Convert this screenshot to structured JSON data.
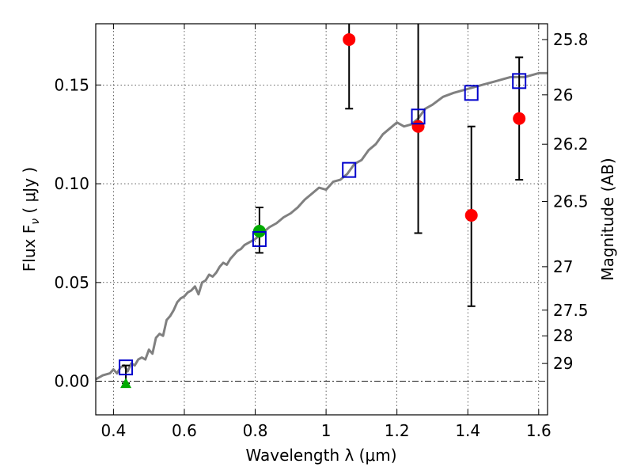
{
  "chart_data": {
    "type": "scatter",
    "xlabel": "Wavelength  λ (μm)",
    "ylabel": "Flux  F",
    "ylabel_sub": "ν",
    "ylabel_unit": "  (  μJy  )",
    "ylabel_right": "Magnitude (AB)",
    "xlim": [
      0.35,
      1.625
    ],
    "ylim": [
      -0.017,
      0.181
    ],
    "x_ticks": [
      0.4,
      0.6,
      0.8,
      1.0,
      1.2,
      1.4,
      1.6
    ],
    "x_tick_labels": [
      "0.4",
      "0.6",
      "0.8",
      "1",
      "1.2",
      "1.4",
      "1.6"
    ],
    "y_ticks": [
      0.0,
      0.05,
      0.1,
      0.15
    ],
    "y_tick_labels": [
      "0.00",
      "0.05",
      "0.10",
      "0.15"
    ],
    "right_ticks": [
      {
        "label": "25.8",
        "flux": 0.173
      },
      {
        "label": "26",
        "flux": 0.145
      },
      {
        "label": "26.2",
        "flux": 0.12
      },
      {
        "label": "26.5",
        "flux": 0.091
      },
      {
        "label": "27",
        "flux": 0.058
      },
      {
        "label": "27.5",
        "flux": 0.036
      },
      {
        "label": "28",
        "flux": 0.023
      },
      {
        "label": "29",
        "flux": 0.009
      }
    ],
    "grid": true,
    "model_spectrum": {
      "color": "#808080",
      "x": [
        0.35,
        0.37,
        0.39,
        0.4,
        0.41,
        0.42,
        0.43,
        0.44,
        0.45,
        0.46,
        0.47,
        0.48,
        0.49,
        0.5,
        0.51,
        0.52,
        0.53,
        0.54,
        0.55,
        0.56,
        0.57,
        0.58,
        0.59,
        0.6,
        0.61,
        0.62,
        0.63,
        0.64,
        0.65,
        0.66,
        0.67,
        0.68,
        0.69,
        0.7,
        0.71,
        0.72,
        0.73,
        0.74,
        0.75,
        0.76,
        0.77,
        0.78,
        0.79,
        0.8,
        0.82,
        0.84,
        0.86,
        0.88,
        0.9,
        0.92,
        0.94,
        0.96,
        0.98,
        1.0,
        1.02,
        1.04,
        1.06,
        1.08,
        1.1,
        1.12,
        1.14,
        1.16,
        1.18,
        1.2,
        1.22,
        1.24,
        1.26,
        1.28,
        1.3,
        1.33,
        1.36,
        1.4,
        1.44,
        1.48,
        1.52,
        1.56,
        1.6,
        1.625
      ],
      "y": [
        0.001,
        0.003,
        0.004,
        0.006,
        0.004,
        0.007,
        0.008,
        0.005,
        0.009,
        0.008,
        0.011,
        0.012,
        0.011,
        0.016,
        0.014,
        0.022,
        0.024,
        0.023,
        0.031,
        0.033,
        0.036,
        0.04,
        0.042,
        0.043,
        0.045,
        0.046,
        0.048,
        0.044,
        0.05,
        0.051,
        0.054,
        0.053,
        0.055,
        0.058,
        0.06,
        0.059,
        0.062,
        0.064,
        0.066,
        0.067,
        0.069,
        0.07,
        0.071,
        0.072,
        0.075,
        0.078,
        0.08,
        0.083,
        0.085,
        0.088,
        0.092,
        0.095,
        0.098,
        0.097,
        0.101,
        0.102,
        0.105,
        0.11,
        0.112,
        0.117,
        0.12,
        0.125,
        0.128,
        0.131,
        0.129,
        0.13,
        0.133,
        0.138,
        0.14,
        0.144,
        0.146,
        0.148,
        0.15,
        0.152,
        0.154,
        0.154,
        0.156,
        0.156
      ]
    },
    "series": [
      {
        "marker": "circle",
        "color": "#ff0000",
        "points": [
          {
            "x": 1.065,
            "y": 0.173,
            "err_low": 0.138,
            "err_high": 0.185
          },
          {
            "x": 1.26,
            "y": 0.129,
            "err_low": 0.075,
            "err_high": 0.185
          },
          {
            "x": 1.41,
            "y": 0.084,
            "err_low": 0.038,
            "err_high": 0.129
          },
          {
            "x": 1.545,
            "y": 0.133,
            "err_low": 0.102,
            "err_high": 0.164
          }
        ]
      },
      {
        "marker": "circle",
        "color": "#00aa00",
        "points": [
          {
            "x": 0.812,
            "y": 0.076,
            "err_low": 0.065,
            "err_high": 0.088
          }
        ]
      },
      {
        "marker": "triangle",
        "color": "#00aa00",
        "points": [
          {
            "x": 0.435,
            "y": -0.001,
            "err_low": -0.001,
            "err_high": 0.008
          }
        ]
      },
      {
        "marker": "open-square",
        "color": "#0000cc",
        "points": [
          {
            "x": 0.435,
            "y": 0.007
          },
          {
            "x": 0.812,
            "y": 0.072
          },
          {
            "x": 1.065,
            "y": 0.107
          },
          {
            "x": 1.26,
            "y": 0.134
          },
          {
            "x": 1.41,
            "y": 0.146
          },
          {
            "x": 1.545,
            "y": 0.152
          }
        ]
      }
    ]
  }
}
